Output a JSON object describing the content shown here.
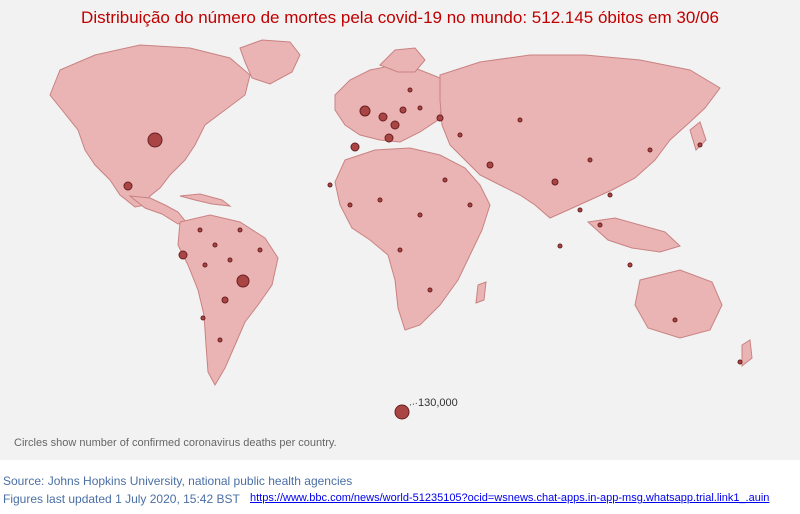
{
  "title": "Distribuição do número de mortes pela covid-19 no mundo: 512.145 óbitos em 30/06",
  "legend": {
    "reference_value_label": "130,000"
  },
  "caption": "Circles show number of confirmed coronavirus deaths per country.",
  "footer": {
    "source": "Source: Johns Hopkins University, national public health agencies",
    "updated": "Figures last updated 1 July 2020, 15:42 BST",
    "link": "https://www.bbc.com/news/world-51235105?ocid=wsnews.chat-apps.in-app-msg.whatsapp.trial.link1_.auin"
  },
  "colors": {
    "land": "#eab4b4",
    "border": "#c98282",
    "circle_fill": "#a94545",
    "circle_stroke": "#6b1f1f",
    "title": "#c00000"
  }
}
